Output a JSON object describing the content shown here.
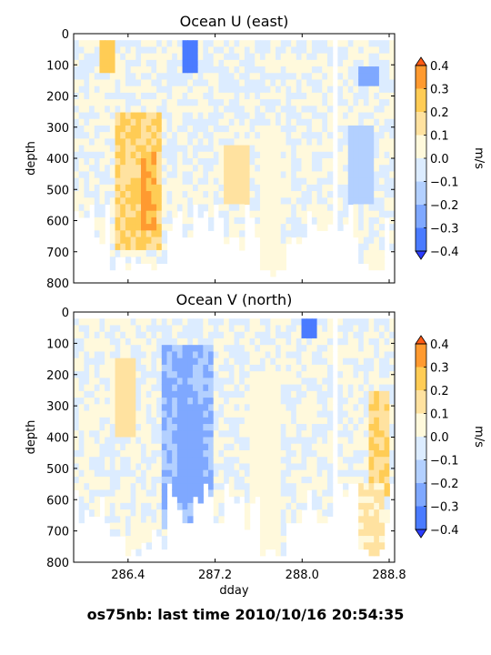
{
  "footer": "os75nb: last time 2010/10/16 20:54:35",
  "colors": {
    "levels": [
      "#2b3cff",
      "#4a7bff",
      "#7fa8ff",
      "#b3d0ff",
      "#dcecff",
      "#fff9dc",
      "#ffe2a0",
      "#ffcc55",
      "#ff9a30",
      "#ff5a14"
    ]
  },
  "chart_data": [
    {
      "type": "heatmap",
      "title": "Ocean U (east)",
      "ylabel": "depth",
      "xlabel": "",
      "ylim": [
        800,
        0
      ],
      "xlim": [
        285.9,
        288.85
      ],
      "yticks": [
        "0",
        "100",
        "200",
        "300",
        "400",
        "500",
        "600",
        "700",
        "800"
      ],
      "xticks": [
        286.4,
        287.2,
        288.0,
        288.8
      ],
      "xticklabels": [],
      "colorbar": {
        "label": "m/s",
        "ticks": [
          "0.4",
          "0.3",
          "0.2",
          "0.1",
          "0.0",
          "−0.1",
          "−0.2",
          "−0.3",
          "−0.4"
        ],
        "levels": [
          -0.5,
          -0.4,
          -0.3,
          -0.2,
          -0.1,
          0.0,
          0.1,
          0.2,
          0.3,
          0.4,
          0.5
        ],
        "extend": "both"
      },
      "regions": [
        {
          "x": [
            286.3,
            286.7
          ],
          "y": [
            250,
            700
          ],
          "value": 0.2
        },
        {
          "x": [
            286.5,
            286.65
          ],
          "y": [
            380,
            640
          ],
          "value": 0.3
        },
        {
          "x": [
            286.15,
            286.3
          ],
          "y": [
            20,
            120
          ],
          "value": 0.25
        },
        {
          "x": [
            286.9,
            287.05
          ],
          "y": [
            20,
            120
          ],
          "value": -0.35
        },
        {
          "x": [
            288.5,
            288.7
          ],
          "y": [
            100,
            170
          ],
          "value": -0.25
        },
        {
          "x": [
            288.4,
            288.65
          ],
          "y": [
            300,
            550
          ],
          "value": -0.15
        },
        {
          "x": [
            287.3,
            287.5
          ],
          "y": [
            350,
            550
          ],
          "value": 0.15
        },
        {
          "x": [
            287.6,
            287.8
          ],
          "y": [
            300,
            780
          ],
          "value": 0.05
        }
      ]
    },
    {
      "type": "heatmap",
      "title": "Ocean V (north)",
      "ylabel": "depth",
      "xlabel": "dday",
      "ylim": [
        800,
        0
      ],
      "xlim": [
        285.9,
        288.85
      ],
      "yticks": [
        "0",
        "100",
        "200",
        "300",
        "400",
        "500",
        "600",
        "700",
        "800"
      ],
      "xticks": [
        286.4,
        287.2,
        288.0,
        288.8
      ],
      "xticklabels": [
        "286.4",
        "287.2",
        "288.0",
        "288.8"
      ],
      "colorbar": {
        "label": "m/s",
        "ticks": [
          "0.4",
          "0.3",
          "0.2",
          "0.1",
          "0.0",
          "−0.1",
          "−0.2",
          "−0.3",
          "−0.4"
        ],
        "levels": [
          -0.5,
          -0.4,
          -0.3,
          -0.2,
          -0.1,
          0.0,
          0.1,
          0.2,
          0.3,
          0.4,
          0.5
        ],
        "extend": "both"
      },
      "regions": [
        {
          "x": [
            286.7,
            287.2
          ],
          "y": [
            100,
            700
          ],
          "value": -0.2
        },
        {
          "x": [
            286.85,
            287.1
          ],
          "y": [
            300,
            600
          ],
          "value": -0.25
        },
        {
          "x": [
            288.0,
            288.15
          ],
          "y": [
            20,
            80
          ],
          "value": -0.35
        },
        {
          "x": [
            288.6,
            288.8
          ],
          "y": [
            250,
            580
          ],
          "value": 0.2
        },
        {
          "x": [
            288.5,
            288.75
          ],
          "y": [
            550,
            780
          ],
          "value": 0.1
        },
        {
          "x": [
            286.3,
            286.45
          ],
          "y": [
            150,
            400
          ],
          "value": 0.15
        },
        {
          "x": [
            287.5,
            287.8
          ],
          "y": [
            200,
            780
          ],
          "value": 0.05
        }
      ]
    }
  ]
}
